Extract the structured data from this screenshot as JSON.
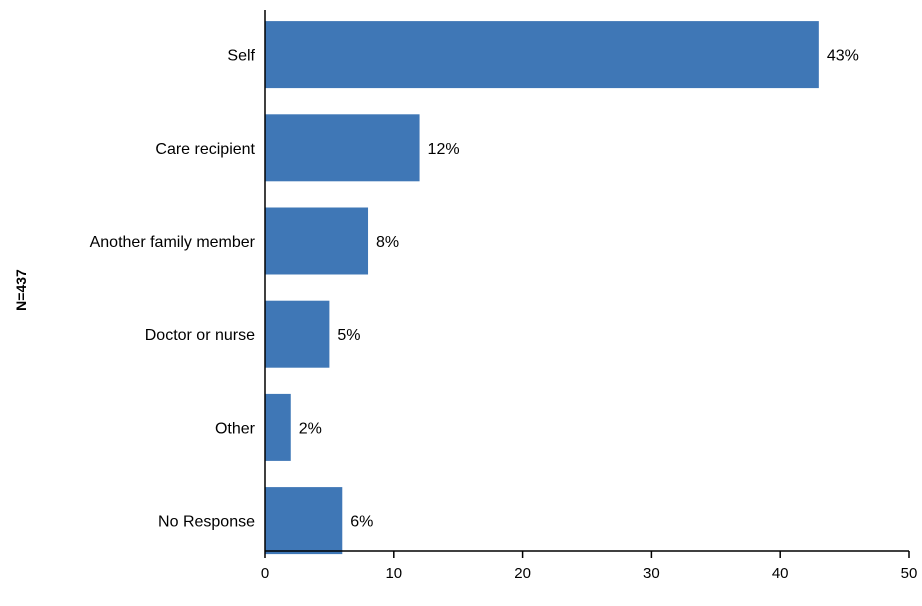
{
  "chart_data": {
    "type": "bar",
    "orientation": "horizontal",
    "title": "",
    "categories": [
      "Self",
      "Care recipient",
      "Another family member",
      "Doctor or nurse",
      "Other",
      "No Response"
    ],
    "values": [
      43,
      12,
      8,
      5,
      2,
      6
    ],
    "data_labels": [
      "43%",
      "12%",
      "8%",
      "5%",
      "2%",
      "6%"
    ],
    "y_side_label": "N=437",
    "xlabel": "",
    "ylabel": "",
    "xlim": [
      0,
      50
    ],
    "x_ticks": [
      0,
      10,
      20,
      30,
      40,
      50
    ],
    "grid": false,
    "legend": "none",
    "bar_color": "#3f77b6"
  }
}
